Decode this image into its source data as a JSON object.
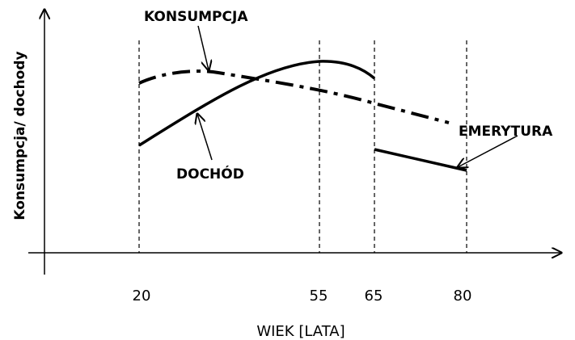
{
  "y_axis_label": "Konsumpcja/ dochody",
  "x_axis_label": "WIEK [LATA]",
  "x_ticks": [
    "20",
    "55",
    "65",
    "80"
  ],
  "curves": {
    "consumption": "KONSUMPCJA",
    "income": "DOCHÓD",
    "pension": "EMERYTURA"
  }
}
